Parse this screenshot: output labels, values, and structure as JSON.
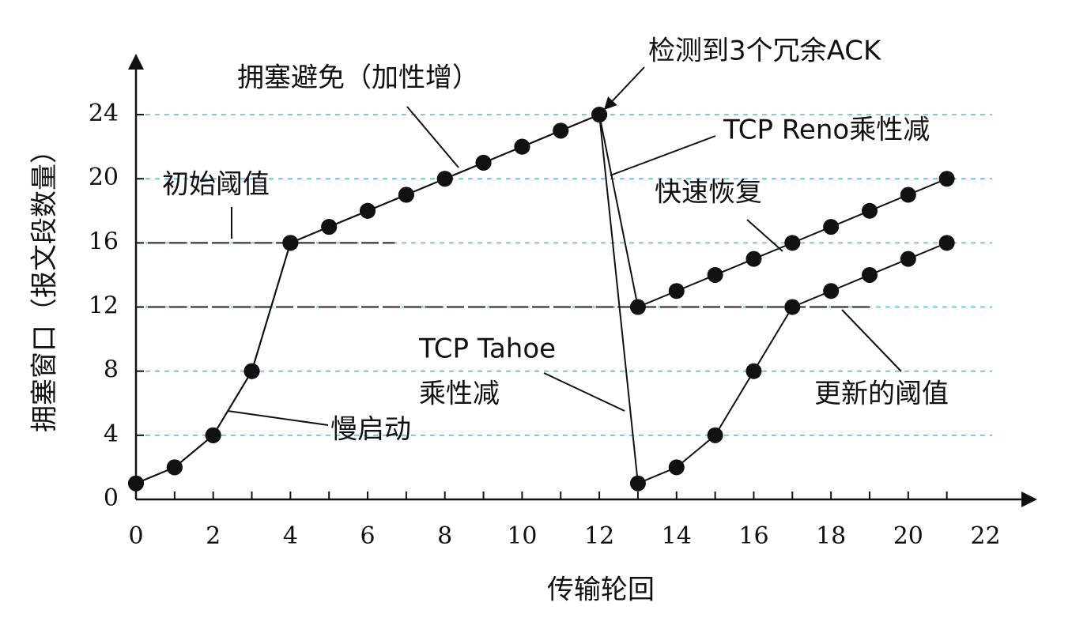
{
  "chart_data": {
    "type": "line",
    "xlabel": "传输轮回",
    "ylabel": "拥塞窗口（报文段数量）",
    "x": [
      0,
      1,
      2,
      3,
      4,
      5,
      6,
      7,
      8,
      9,
      10,
      11,
      12,
      13,
      14,
      15,
      16,
      17,
      18,
      19,
      20,
      21
    ],
    "series": [
      {
        "name": "TCP Reno",
        "color": "#111111",
        "values": [
          1,
          2,
          4,
          8,
          16,
          17,
          18,
          19,
          20,
          21,
          22,
          23,
          24,
          12,
          13,
          14,
          15,
          16,
          17,
          18,
          19,
          20
        ]
      },
      {
        "name": "TCP Tahoe",
        "color": "#111111",
        "values": [
          1,
          2,
          4,
          8,
          16,
          17,
          18,
          19,
          20,
          21,
          22,
          23,
          24,
          1,
          2,
          4,
          8,
          12,
          13,
          14,
          15,
          16
        ]
      }
    ],
    "thresholds": [
      16,
      12
    ],
    "xlim": [
      0,
      23.3
    ],
    "ylim": [
      0,
      27.7
    ],
    "xticks": [
      0,
      2,
      4,
      6,
      8,
      10,
      12,
      14,
      16,
      18,
      20,
      22
    ],
    "yticks": [
      0,
      4,
      8,
      12,
      16,
      20,
      24
    ],
    "grid": true,
    "grid_color": "#4fb8d8",
    "annotations": [
      "拥塞避免（加性增）",
      "检测到3个冗余ACK",
      "TCP Reno乘性减",
      "初始阈值",
      "快速恢复",
      "TCP Tahoe",
      "乘性减",
      "慢启动",
      "更新的阈值"
    ]
  }
}
